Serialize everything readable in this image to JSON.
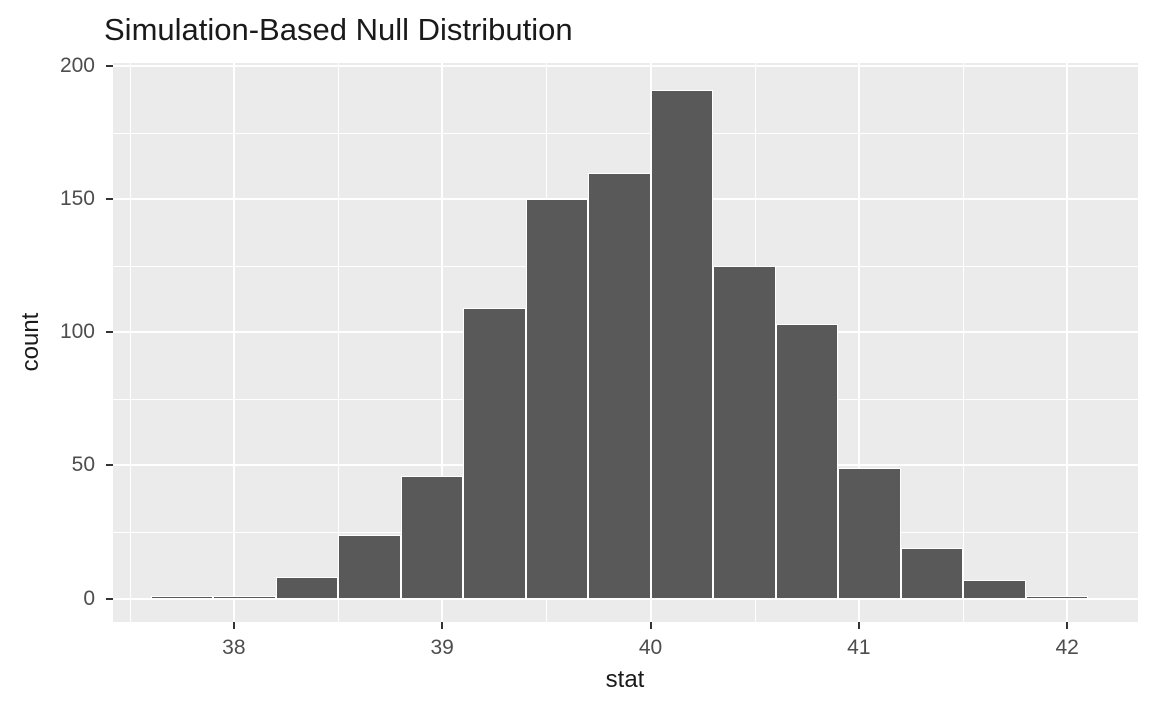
{
  "figure": {
    "title": "Simulation-Based Null Distribution",
    "x_axis_label": "stat",
    "y_axis_label": "count"
  },
  "chart_data": {
    "type": "bar",
    "subtype": "histogram",
    "title": "Simulation-Based Null Distribution",
    "xlabel": "stat",
    "ylabel": "count",
    "bin_width": 0.3,
    "bin_centers": [
      37.75,
      38.05,
      38.35,
      38.65,
      38.95,
      39.25,
      39.55,
      39.85,
      40.15,
      40.45,
      40.75,
      41.05,
      41.35,
      41.65,
      41.95
    ],
    "counts": [
      1,
      1,
      8,
      24,
      46,
      109,
      150,
      160,
      191,
      125,
      103,
      49,
      19,
      7,
      1
    ],
    "x_ticks": [
      38,
      39,
      40,
      41,
      42
    ],
    "y_ticks": [
      0,
      50,
      100,
      150,
      200
    ],
    "x_minor_gridlines": [
      37.5,
      38.5,
      39.5,
      40.5,
      41.5
    ],
    "y_minor_gridlines": [
      25,
      75,
      125,
      175
    ],
    "xlim": [
      37.42,
      42.34
    ],
    "ylim": [
      -8.8,
      201.2
    ],
    "grid": "on",
    "legend_position": "none",
    "colors": {
      "bar_fill": "#595959",
      "bar_border": "#FFFFFF",
      "panel_background": "#EBEBEB",
      "gridline": "#FFFFFF",
      "tick_mark": "#333333",
      "axis_text": "#4D4D4D",
      "title_text": "#1A1A1A",
      "background": "#FFFFFF"
    }
  }
}
